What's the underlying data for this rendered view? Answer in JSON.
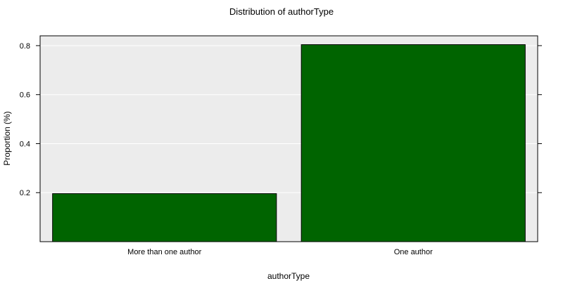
{
  "chart_data": {
    "type": "bar",
    "title": "Distribution of authorType",
    "xlabel": "authorType",
    "ylabel": "Proportion (%)",
    "categories": [
      "More than one author",
      "One author"
    ],
    "values": [
      0.196,
      0.804
    ],
    "ylim": [
      0,
      0.84
    ],
    "yticks": [
      0.2,
      0.4,
      0.6,
      0.8
    ],
    "ytick_labels": [
      "0.2",
      "0.4",
      "0.6",
      "0.8"
    ],
    "grid": true,
    "bar_color": "#006400",
    "panel_color": "#ececec"
  }
}
